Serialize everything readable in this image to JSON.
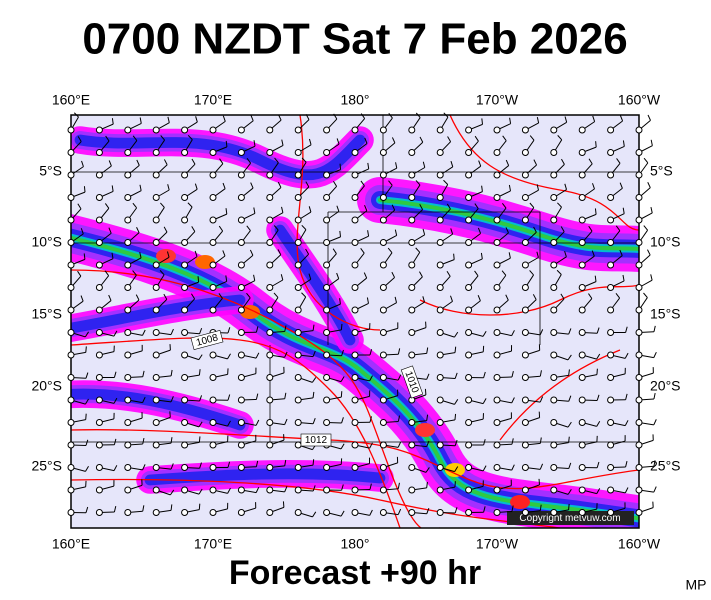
{
  "title": "0700 NZDT Sat 7 Feb 2026",
  "footer": "Forecast +90 hr",
  "corner_label": "MP",
  "copyright": "Copyright metvuw.com",
  "lon_labels": [
    "160°E",
    "170°E",
    "180°",
    "170°W",
    "160°W"
  ],
  "lat_labels": [
    "5°S",
    "10°S",
    "15°S",
    "20°S",
    "25°S"
  ],
  "isobar_labels": [
    "1008",
    "1010",
    "1012"
  ]
}
